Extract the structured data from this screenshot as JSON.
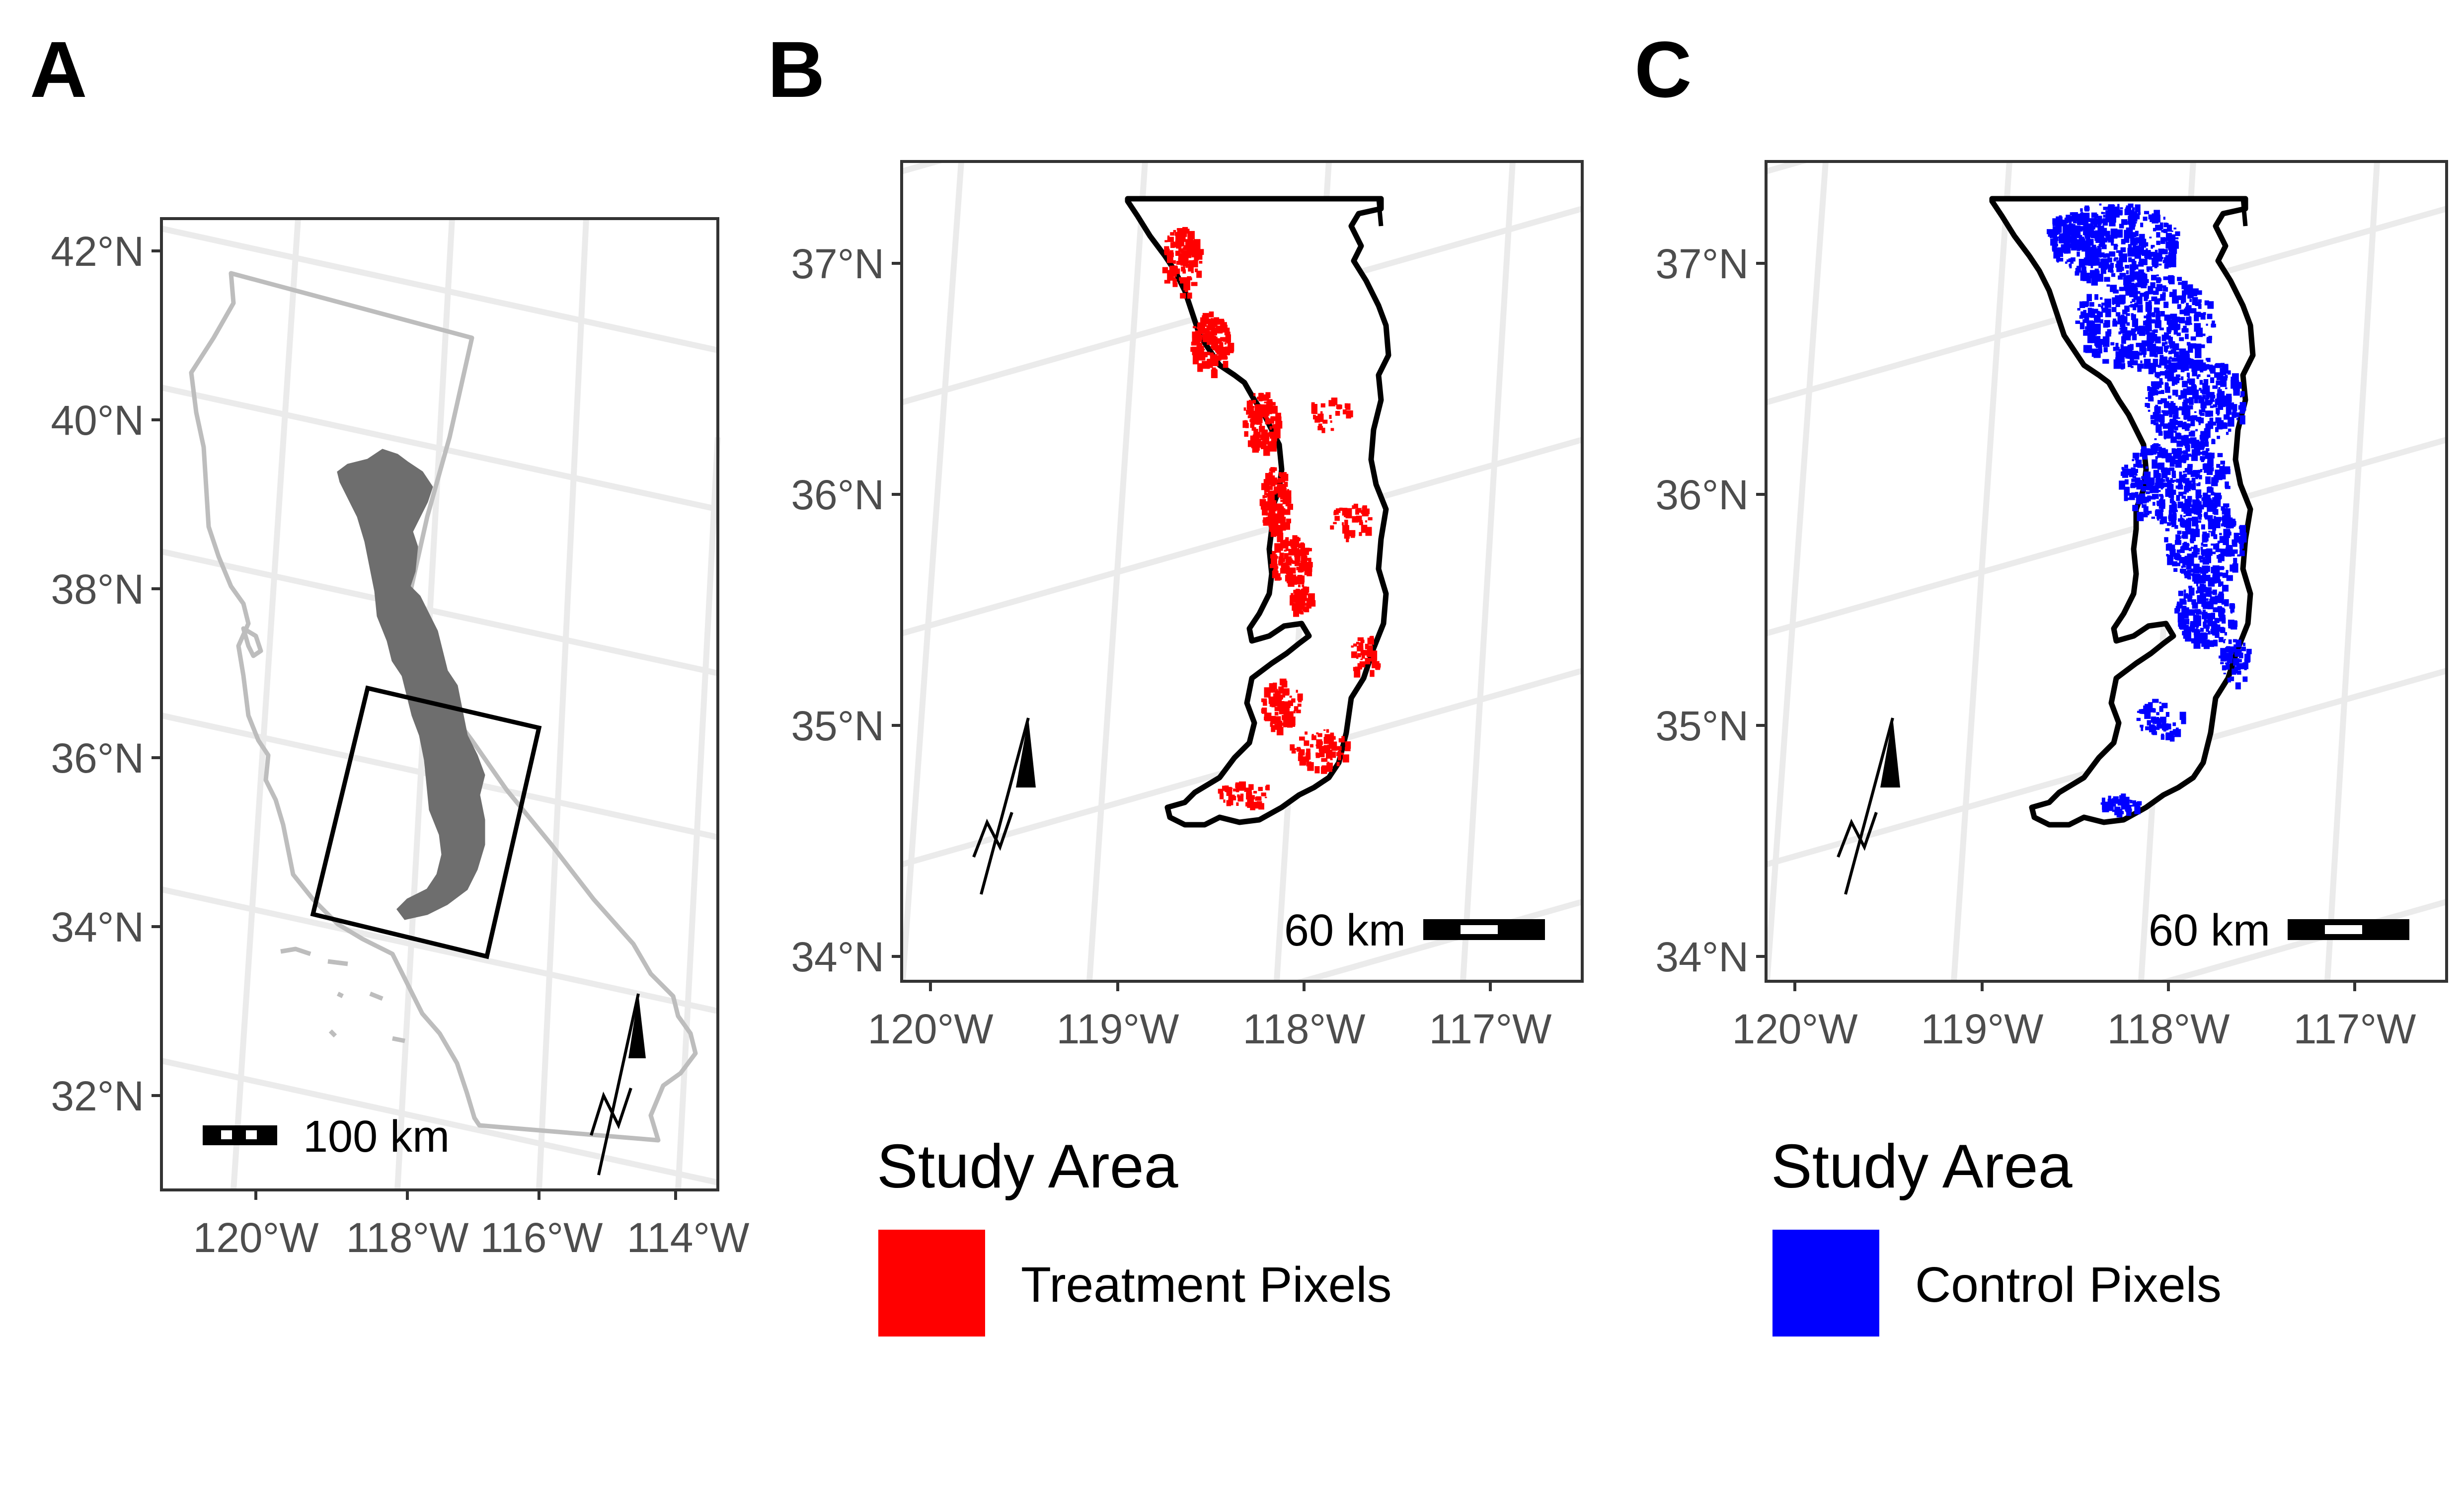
{
  "panels": {
    "A": {
      "letter": "A",
      "y_ticks": [
        "42°N",
        "40°N",
        "38°N",
        "36°N",
        "34°N",
        "32°N"
      ],
      "x_ticks": [
        "120°W",
        "118°W",
        "116°W",
        "114°W"
      ],
      "scale_label": "100 km"
    },
    "B": {
      "letter": "B",
      "y_ticks": [
        "37°N",
        "36°N",
        "35°N",
        "34°N"
      ],
      "x_ticks": [
        "120°W",
        "119°W",
        "118°W",
        "117°W"
      ],
      "scale_label": "60 km",
      "legend_title": "Study Area",
      "legend_label": "Treatment Pixels",
      "pixel_color": "#ff0000"
    },
    "C": {
      "letter": "C",
      "y_ticks": [
        "37°N",
        "36°N",
        "35°N",
        "34°N"
      ],
      "x_ticks": [
        "120°W",
        "119°W",
        "118°W",
        "117°W"
      ],
      "scale_label": "60 km",
      "legend_title": "Study Area",
      "legend_label": "Control Pixels",
      "pixel_color": "#0000ff"
    }
  }
}
